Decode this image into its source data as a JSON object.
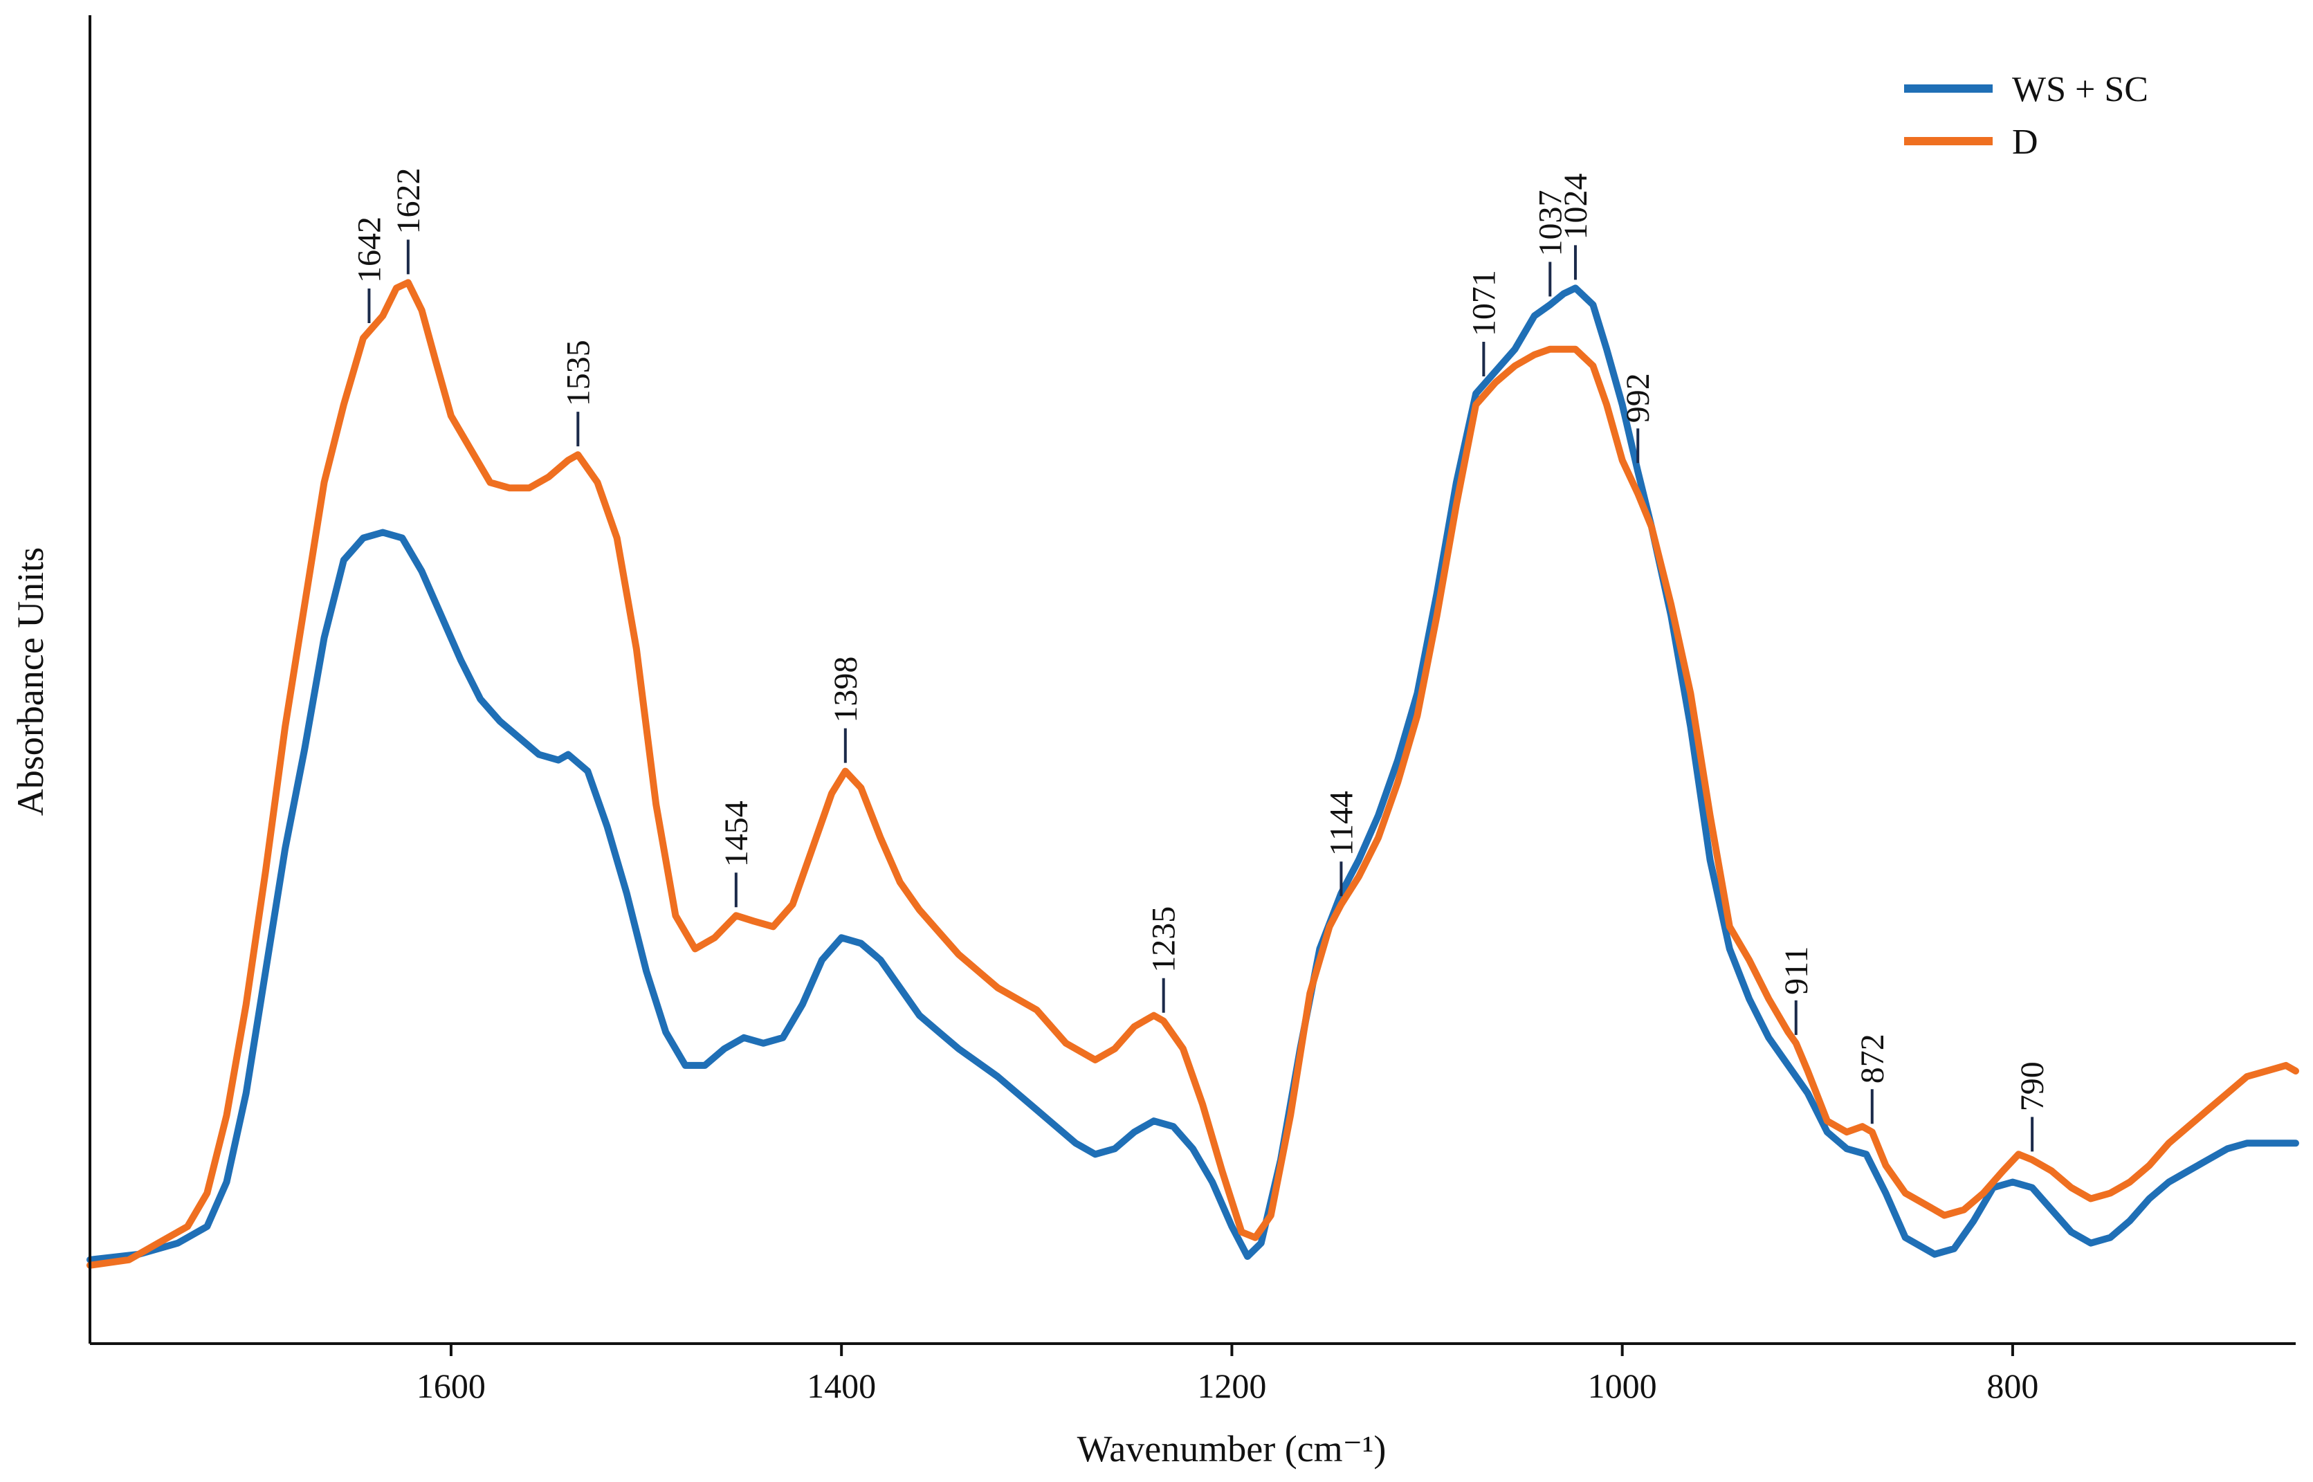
{
  "chart_data": {
    "type": "line",
    "title": "",
    "xlabel": "Wavenumber (cm⁻¹)",
    "ylabel": "Absorbance Units",
    "x_reversed": true,
    "xlim": [
      1785,
      655
    ],
    "ylim": [
      0,
      1.0
    ],
    "x_ticks": [
      "1600",
      "1400",
      "1200",
      "1000",
      "800"
    ],
    "x_tick_values": [
      1600,
      1400,
      1200,
      1000,
      800
    ],
    "grid": false,
    "legend_position": "top-right",
    "series": [
      {
        "name": "WS + SC",
        "color": "#1f6fb6",
        "points": [
          [
            1785,
            0.04
          ],
          [
            1760,
            0.045
          ],
          [
            1740,
            0.055
          ],
          [
            1725,
            0.07
          ],
          [
            1715,
            0.11
          ],
          [
            1705,
            0.19
          ],
          [
            1695,
            0.3
          ],
          [
            1685,
            0.41
          ],
          [
            1675,
            0.5
          ],
          [
            1665,
            0.6
          ],
          [
            1655,
            0.67
          ],
          [
            1645,
            0.69
          ],
          [
            1635,
            0.695
          ],
          [
            1625,
            0.69
          ],
          [
            1615,
            0.66
          ],
          [
            1605,
            0.62
          ],
          [
            1595,
            0.58
          ],
          [
            1585,
            0.545
          ],
          [
            1575,
            0.525
          ],
          [
            1565,
            0.51
          ],
          [
            1555,
            0.495
          ],
          [
            1545,
            0.49
          ],
          [
            1540,
            0.495
          ],
          [
            1530,
            0.48
          ],
          [
            1520,
            0.43
          ],
          [
            1510,
            0.37
          ],
          [
            1500,
            0.3
          ],
          [
            1490,
            0.245
          ],
          [
            1480,
            0.215
          ],
          [
            1470,
            0.215
          ],
          [
            1460,
            0.23
          ],
          [
            1450,
            0.24
          ],
          [
            1440,
            0.235
          ],
          [
            1430,
            0.24
          ],
          [
            1420,
            0.27
          ],
          [
            1410,
            0.31
          ],
          [
            1400,
            0.33
          ],
          [
            1390,
            0.325
          ],
          [
            1380,
            0.31
          ],
          [
            1370,
            0.285
          ],
          [
            1360,
            0.26
          ],
          [
            1350,
            0.245
          ],
          [
            1340,
            0.23
          ],
          [
            1320,
            0.205
          ],
          [
            1300,
            0.175
          ],
          [
            1280,
            0.145
          ],
          [
            1270,
            0.135
          ],
          [
            1260,
            0.14
          ],
          [
            1250,
            0.155
          ],
          [
            1240,
            0.165
          ],
          [
            1230,
            0.16
          ],
          [
            1220,
            0.14
          ],
          [
            1210,
            0.11
          ],
          [
            1200,
            0.07
          ],
          [
            1192,
            0.043
          ],
          [
            1185,
            0.055
          ],
          [
            1175,
            0.13
          ],
          [
            1165,
            0.23
          ],
          [
            1155,
            0.32
          ],
          [
            1144,
            0.37
          ],
          [
            1135,
            0.4
          ],
          [
            1125,
            0.44
          ],
          [
            1115,
            0.49
          ],
          [
            1105,
            0.55
          ],
          [
            1095,
            0.64
          ],
          [
            1085,
            0.74
          ],
          [
            1075,
            0.82
          ],
          [
            1065,
            0.84
          ],
          [
            1055,
            0.86
          ],
          [
            1045,
            0.89
          ],
          [
            1037,
            0.9
          ],
          [
            1030,
            0.91
          ],
          [
            1024,
            0.915
          ],
          [
            1015,
            0.9
          ],
          [
            1008,
            0.86
          ],
          [
            1000,
            0.81
          ],
          [
            992,
            0.75
          ],
          [
            985,
            0.7
          ],
          [
            975,
            0.62
          ],
          [
            965,
            0.52
          ],
          [
            955,
            0.4
          ],
          [
            945,
            0.32
          ],
          [
            935,
            0.275
          ],
          [
            925,
            0.24
          ],
          [
            915,
            0.215
          ],
          [
            905,
            0.19
          ],
          [
            895,
            0.155
          ],
          [
            885,
            0.14
          ],
          [
            875,
            0.135
          ],
          [
            865,
            0.1
          ],
          [
            855,
            0.06
          ],
          [
            840,
            0.045
          ],
          [
            830,
            0.05
          ],
          [
            820,
            0.075
          ],
          [
            810,
            0.105
          ],
          [
            800,
            0.11
          ],
          [
            790,
            0.105
          ],
          [
            780,
            0.085
          ],
          [
            770,
            0.065
          ],
          [
            760,
            0.055
          ],
          [
            750,
            0.06
          ],
          [
            740,
            0.075
          ],
          [
            730,
            0.095
          ],
          [
            720,
            0.11
          ],
          [
            710,
            0.12
          ],
          [
            700,
            0.13
          ],
          [
            690,
            0.14
          ],
          [
            680,
            0.145
          ],
          [
            670,
            0.145
          ],
          [
            655,
            0.145
          ]
        ]
      },
      {
        "name": "D",
        "color": "#ef6f20",
        "points": [
          [
            1785,
            0.035
          ],
          [
            1765,
            0.04
          ],
          [
            1750,
            0.055
          ],
          [
            1735,
            0.07
          ],
          [
            1725,
            0.1
          ],
          [
            1715,
            0.17
          ],
          [
            1705,
            0.27
          ],
          [
            1695,
            0.39
          ],
          [
            1685,
            0.52
          ],
          [
            1675,
            0.63
          ],
          [
            1665,
            0.74
          ],
          [
            1655,
            0.81
          ],
          [
            1645,
            0.87
          ],
          [
            1635,
            0.89
          ],
          [
            1628,
            0.915
          ],
          [
            1622,
            0.92
          ],
          [
            1615,
            0.895
          ],
          [
            1608,
            0.85
          ],
          [
            1600,
            0.8
          ],
          [
            1590,
            0.77
          ],
          [
            1580,
            0.74
          ],
          [
            1570,
            0.735
          ],
          [
            1560,
            0.735
          ],
          [
            1550,
            0.745
          ],
          [
            1540,
            0.76
          ],
          [
            1535,
            0.765
          ],
          [
            1525,
            0.74
          ],
          [
            1515,
            0.69
          ],
          [
            1505,
            0.59
          ],
          [
            1495,
            0.45
          ],
          [
            1485,
            0.35
          ],
          [
            1475,
            0.32
          ],
          [
            1465,
            0.33
          ],
          [
            1454,
            0.35
          ],
          [
            1445,
            0.345
          ],
          [
            1435,
            0.34
          ],
          [
            1425,
            0.36
          ],
          [
            1415,
            0.41
          ],
          [
            1405,
            0.46
          ],
          [
            1398,
            0.48
          ],
          [
            1390,
            0.465
          ],
          [
            1380,
            0.42
          ],
          [
            1370,
            0.38
          ],
          [
            1360,
            0.355
          ],
          [
            1350,
            0.335
          ],
          [
            1340,
            0.315
          ],
          [
            1330,
            0.3
          ],
          [
            1320,
            0.285
          ],
          [
            1300,
            0.265
          ],
          [
            1285,
            0.235
          ],
          [
            1270,
            0.22
          ],
          [
            1260,
            0.23
          ],
          [
            1250,
            0.25
          ],
          [
            1240,
            0.26
          ],
          [
            1235,
            0.255
          ],
          [
            1225,
            0.23
          ],
          [
            1215,
            0.18
          ],
          [
            1205,
            0.12
          ],
          [
            1195,
            0.065
          ],
          [
            1188,
            0.06
          ],
          [
            1180,
            0.08
          ],
          [
            1170,
            0.17
          ],
          [
            1160,
            0.28
          ],
          [
            1150,
            0.34
          ],
          [
            1144,
            0.36
          ],
          [
            1135,
            0.385
          ],
          [
            1125,
            0.42
          ],
          [
            1115,
            0.47
          ],
          [
            1105,
            0.53
          ],
          [
            1095,
            0.62
          ],
          [
            1085,
            0.72
          ],
          [
            1075,
            0.81
          ],
          [
            1065,
            0.83
          ],
          [
            1055,
            0.845
          ],
          [
            1045,
            0.855
          ],
          [
            1037,
            0.86
          ],
          [
            1030,
            0.86
          ],
          [
            1024,
            0.86
          ],
          [
            1015,
            0.845
          ],
          [
            1008,
            0.81
          ],
          [
            1000,
            0.76
          ],
          [
            992,
            0.73
          ],
          [
            985,
            0.7
          ],
          [
            975,
            0.63
          ],
          [
            965,
            0.55
          ],
          [
            955,
            0.44
          ],
          [
            945,
            0.34
          ],
          [
            935,
            0.31
          ],
          [
            925,
            0.275
          ],
          [
            915,
            0.245
          ],
          [
            911,
            0.235
          ],
          [
            905,
            0.21
          ],
          [
            895,
            0.165
          ],
          [
            885,
            0.155
          ],
          [
            877,
            0.16
          ],
          [
            872,
            0.155
          ],
          [
            865,
            0.125
          ],
          [
            855,
            0.1
          ],
          [
            845,
            0.09
          ],
          [
            835,
            0.08
          ],
          [
            825,
            0.085
          ],
          [
            815,
            0.1
          ],
          [
            805,
            0.12
          ],
          [
            797,
            0.135
          ],
          [
            790,
            0.13
          ],
          [
            780,
            0.12
          ],
          [
            770,
            0.105
          ],
          [
            760,
            0.095
          ],
          [
            750,
            0.1
          ],
          [
            740,
            0.11
          ],
          [
            730,
            0.125
          ],
          [
            720,
            0.145
          ],
          [
            710,
            0.16
          ],
          [
            700,
            0.175
          ],
          [
            690,
            0.19
          ],
          [
            680,
            0.205
          ],
          [
            670,
            0.21
          ],
          [
            660,
            0.215
          ],
          [
            655,
            0.21
          ]
        ]
      }
    ],
    "peak_labels": [
      {
        "label": "1642",
        "x": 1642,
        "series": "D"
      },
      {
        "label": "1622",
        "x": 1622,
        "series": "D"
      },
      {
        "label": "1535",
        "x": 1535,
        "series": "D"
      },
      {
        "label": "1454",
        "x": 1454,
        "series": "D"
      },
      {
        "label": "1398",
        "x": 1398,
        "series": "D"
      },
      {
        "label": "1235",
        "x": 1235,
        "series": "D"
      },
      {
        "label": "1144",
        "x": 1144,
        "series": "D"
      },
      {
        "label": "1071",
        "x": 1071,
        "series": "WS + SC"
      },
      {
        "label": "1037",
        "x": 1037,
        "series": "WS + SC"
      },
      {
        "label": "1024",
        "x": 1024,
        "series": "WS + SC"
      },
      {
        "label": "992",
        "x": 992,
        "series": "WS + SC"
      },
      {
        "label": "911",
        "x": 911,
        "series": "D"
      },
      {
        "label": "872",
        "x": 872,
        "series": "D"
      },
      {
        "label": "790",
        "x": 790,
        "series": "D"
      }
    ]
  }
}
